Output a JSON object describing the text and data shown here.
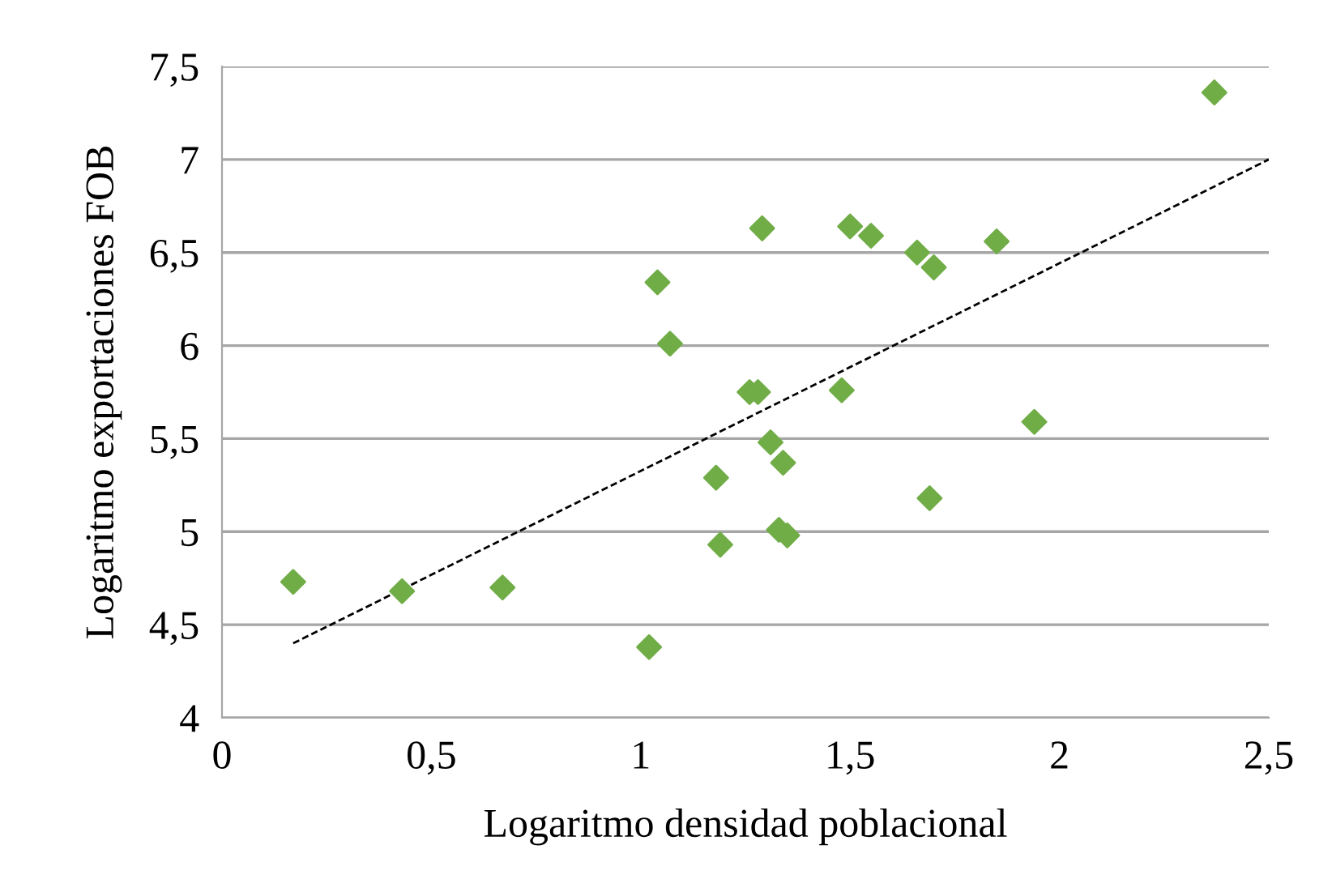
{
  "chart_data": {
    "type": "scatter",
    "xlabel": "Logaritmo densidad poblacional",
    "ylabel": "Logaritmo exportaciones FOB",
    "xlim": [
      0,
      2.5
    ],
    "xticks": [
      0,
      {
        "value": 0.5,
        "label": "0,5"
      },
      1,
      {
        "value": 1.5,
        "label": "1,5"
      },
      2,
      {
        "value": 2.5,
        "label": "2,5"
      }
    ],
    "ylim": [
      4,
      7.5
    ],
    "yticks": [
      4,
      {
        "value": 4.5,
        "label": "4,5"
      },
      5,
      {
        "value": 5.5,
        "label": "5,5"
      },
      6,
      {
        "value": 6.5,
        "label": "6,5"
      },
      7,
      {
        "value": 7.5,
        "label": "7,5"
      }
    ],
    "grid": "y",
    "legend": false,
    "series": [
      {
        "color": "#70ad47",
        "marker": "diamond",
        "x": [
          0.17,
          0.43,
          0.67,
          1.02,
          1.04,
          1.07,
          1.19,
          1.18,
          1.26,
          1.28,
          1.29,
          1.31,
          1.34,
          1.33,
          1.35,
          1.48,
          1.5,
          1.55,
          1.66,
          1.7,
          1.69,
          1.85,
          1.94,
          2.37
        ],
        "values": [
          4.73,
          4.68,
          4.7,
          4.38,
          6.34,
          6.01,
          4.93,
          5.29,
          5.75,
          5.75,
          6.63,
          5.48,
          5.37,
          5.01,
          4.98,
          5.76,
          6.64,
          6.59,
          6.5,
          6.42,
          5.18,
          6.56,
          5.59,
          7.36
        ]
      },
      {
        "type": "line",
        "color": "#000000",
        "line_style": "dashed",
        "marker": "none",
        "x": [
          0.17,
          2.5
        ],
        "values": [
          4.4,
          7.0
        ]
      }
    ]
  }
}
